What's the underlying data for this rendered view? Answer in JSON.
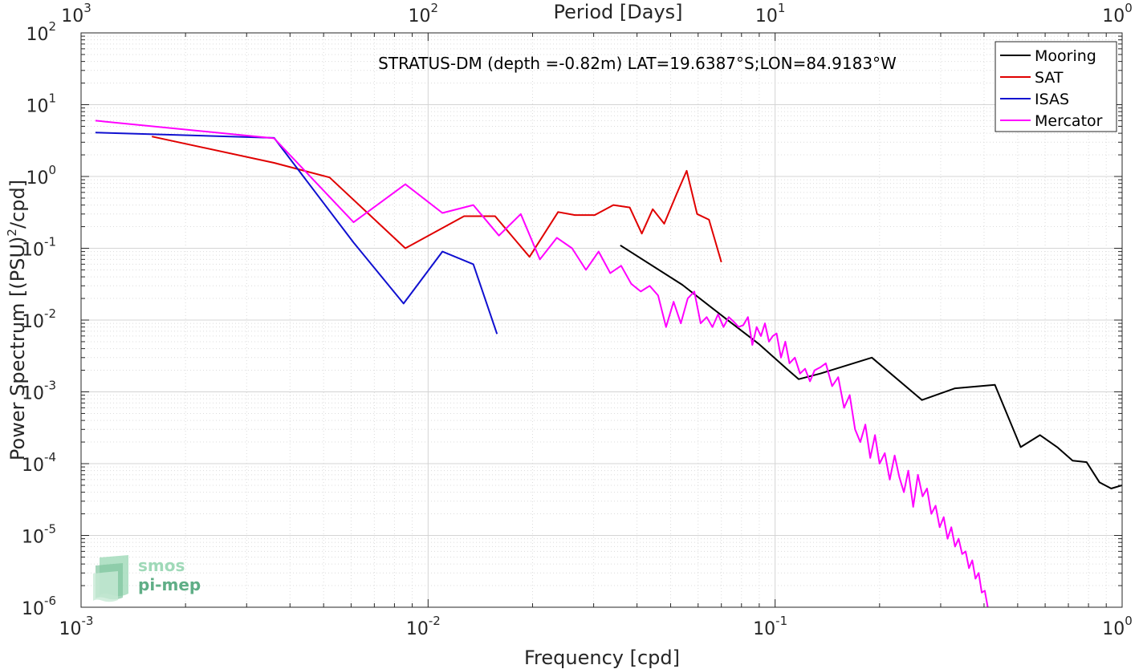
{
  "chart_data": {
    "type": "line",
    "title": "STRATUS-DM (depth =-0.82m) LAT=19.6387°S;LON=84.9183°W",
    "xlabel": "Frequency [cpd]",
    "ylabel": "Power Spectrum [(PSU)",
    "ylabel_sup": "2",
    "ylabel_end": "/cpd]",
    "x2label": "Period [Days]",
    "xscale": "log",
    "yscale": "log",
    "xlim": [
      0.001,
      1
    ],
    "ylim": [
      1e-06,
      100
    ],
    "grid": true,
    "legend_position": "top-right",
    "x_ticks": [
      {
        "value": 0.001,
        "base": "10",
        "exp": "-3"
      },
      {
        "value": 0.01,
        "base": "10",
        "exp": "-2"
      },
      {
        "value": 0.1,
        "base": "10",
        "exp": "-1"
      },
      {
        "value": 1,
        "base": "10",
        "exp": "0"
      }
    ],
    "x2_ticks": [
      {
        "value": 0.001,
        "base": "10",
        "exp": "3"
      },
      {
        "value": 0.01,
        "base": "10",
        "exp": "2"
      },
      {
        "value": 0.1,
        "base": "10",
        "exp": "1"
      },
      {
        "value": 1,
        "base": "10",
        "exp": "0"
      }
    ],
    "y_ticks": [
      {
        "value": 1e-06,
        "base": "10",
        "exp": "-6"
      },
      {
        "value": 1e-05,
        "base": "10",
        "exp": "-5"
      },
      {
        "value": 0.0001,
        "base": "10",
        "exp": "-4"
      },
      {
        "value": 0.001,
        "base": "10",
        "exp": "-3"
      },
      {
        "value": 0.01,
        "base": "10",
        "exp": "-2"
      },
      {
        "value": 0.1,
        "base": "10",
        "exp": "-1"
      },
      {
        "value": 1,
        "base": "10",
        "exp": "0"
      },
      {
        "value": 10,
        "base": "10",
        "exp": "1"
      },
      {
        "value": 100,
        "base": "10",
        "exp": "2"
      }
    ],
    "series": [
      {
        "name": "Mooring",
        "color": "#000000",
        "x": [
          0.0358,
          0.054,
          0.072,
          0.09,
          0.108,
          0.117,
          0.135,
          0.19,
          0.265,
          0.33,
          0.43,
          0.51,
          0.58,
          0.65,
          0.72,
          0.79,
          0.86,
          0.93,
          1.0
        ],
        "y": [
          0.11,
          0.031,
          0.0105,
          0.0046,
          0.0021,
          0.0015,
          0.0018,
          0.003,
          0.00077,
          0.00112,
          0.00125,
          0.00017,
          0.00025,
          0.00017,
          0.00011,
          0.000105,
          5.5e-05,
          4.5e-05,
          5e-05
        ]
      },
      {
        "name": "SAT",
        "color": "#e00000",
        "x": [
          0.0016,
          0.0036,
          0.0052,
          0.0086,
          0.0127,
          0.0156,
          0.0196,
          0.0237,
          0.0265,
          0.0302,
          0.0342,
          0.0381,
          0.0413,
          0.0444,
          0.0479,
          0.0521,
          0.0556,
          0.0596,
          0.0645,
          0.07
        ],
        "y": [
          3.6,
          1.55,
          0.97,
          0.1,
          0.28,
          0.28,
          0.076,
          0.32,
          0.29,
          0.29,
          0.4,
          0.37,
          0.16,
          0.35,
          0.22,
          0.58,
          1.2,
          0.3,
          0.25,
          0.064
        ]
      },
      {
        "name": "ISAS",
        "color": "#1010d0",
        "x": [
          0.0011,
          0.0036,
          0.0061,
          0.0085,
          0.011,
          0.0135,
          0.0158
        ],
        "y": [
          4.1,
          3.45,
          0.12,
          0.017,
          0.09,
          0.06,
          0.0064
        ]
      },
      {
        "name": "Mercator",
        "color": "#ff00ff",
        "x": [
          0.0011,
          0.0036,
          0.0061,
          0.0086,
          0.011,
          0.0135,
          0.016,
          0.0185,
          0.021,
          0.0235,
          0.026,
          0.0285,
          0.031,
          0.0335,
          0.036,
          0.0385,
          0.041,
          0.0435,
          0.046,
          0.0485,
          0.051,
          0.0535,
          0.056,
          0.0585,
          0.061,
          0.0635,
          0.066,
          0.0685,
          0.071,
          0.0735,
          0.076,
          0.0785,
          0.081,
          0.0835,
          0.086,
          0.0885,
          0.091,
          0.0935,
          0.096,
          0.0985,
          0.101,
          0.104,
          0.107,
          0.11,
          0.114,
          0.118,
          0.122,
          0.126,
          0.13,
          0.135,
          0.14,
          0.146,
          0.152,
          0.158,
          0.164,
          0.17,
          0.176,
          0.182,
          0.188,
          0.194,
          0.2,
          0.207,
          0.214,
          0.221,
          0.228,
          0.235,
          0.242,
          0.25,
          0.258,
          0.266,
          0.274,
          0.282,
          0.29,
          0.298,
          0.306,
          0.314,
          0.322,
          0.33,
          0.338,
          0.346,
          0.354,
          0.362,
          0.37,
          0.378,
          0.386,
          0.394,
          0.402,
          0.41
        ],
        "y": [
          6.0,
          3.4,
          0.23,
          0.78,
          0.31,
          0.4,
          0.15,
          0.3,
          0.07,
          0.14,
          0.1,
          0.05,
          0.09,
          0.045,
          0.057,
          0.032,
          0.025,
          0.03,
          0.022,
          0.008,
          0.018,
          0.009,
          0.02,
          0.025,
          0.009,
          0.011,
          0.008,
          0.012,
          0.008,
          0.011,
          0.0095,
          0.008,
          0.0085,
          0.011,
          0.0045,
          0.008,
          0.006,
          0.009,
          0.005,
          0.006,
          0.0065,
          0.003,
          0.005,
          0.0025,
          0.003,
          0.0018,
          0.0021,
          0.0014,
          0.002,
          0.0022,
          0.0025,
          0.0012,
          0.0016,
          0.0006,
          0.0009,
          0.0003,
          0.0002,
          0.00035,
          0.00012,
          0.00025,
          0.0001,
          0.00014,
          6e-05,
          0.00013,
          6.5e-05,
          4e-05,
          8e-05,
          2.5e-05,
          7e-05,
          3.5e-05,
          4.5e-05,
          2e-05,
          2.6e-05,
          1.3e-05,
          1.8e-05,
          9e-06,
          1.3e-05,
          7e-06,
          9e-06,
          5.5e-06,
          6e-06,
          3.5e-06,
          4.5e-06,
          2.5e-06,
          3e-06,
          1.6e-06,
          1.7e-06,
          1e-06
        ]
      }
    ]
  },
  "logo": {
    "line1": "smos",
    "line2": "pi-mep",
    "color1": "#9fd9b8",
    "color2": "#5fae86"
  }
}
